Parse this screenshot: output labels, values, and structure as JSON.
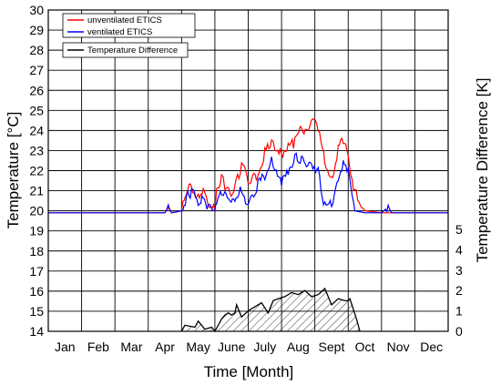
{
  "chart_data": {
    "type": "line",
    "xlabel": "Time [Month]",
    "ylabel": "Temperature [°C]",
    "y2label": "Temperature Difference [K]",
    "categories": [
      "Jan",
      "Feb",
      "Mar",
      "Apr",
      "May",
      "June",
      "July",
      "Aug",
      "Sept",
      "Oct",
      "Nov",
      "Dec"
    ],
    "xlim": [
      0,
      12
    ],
    "ylim": [
      14,
      30
    ],
    "yticks": [
      14,
      15,
      16,
      17,
      18,
      19,
      20,
      21,
      22,
      23,
      24,
      25,
      26,
      27,
      28,
      29,
      30
    ],
    "y2lim": [
      0,
      5
    ],
    "y2ticks": [
      0,
      1,
      2,
      3,
      4,
      5
    ],
    "grid": true,
    "legend": "top-left",
    "colors": {
      "unventilated": "#ff0000",
      "ventilated": "#0000ff",
      "difference": "#000000",
      "grid": "#000000"
    },
    "series": [
      {
        "name": "unventilated ETICS",
        "axis": "left",
        "x": [
          0,
          3.5,
          3.6,
          3.7,
          4.0,
          4.15,
          4.3,
          4.5,
          4.65,
          4.8,
          5.0,
          5.05,
          5.2,
          5.3,
          5.45,
          5.6,
          5.8,
          6.0,
          6.25,
          6.5,
          6.7,
          6.8,
          7.0,
          7.2,
          7.4,
          7.6,
          7.75,
          7.9,
          8.1,
          8.3,
          8.5,
          8.7,
          8.85,
          9.0,
          9.2,
          9.5,
          10.0,
          12.0
        ],
        "values": [
          19.9,
          19.9,
          20.2,
          19.9,
          20.0,
          20.9,
          21.2,
          20.6,
          21.1,
          20.3,
          20.0,
          21.0,
          21.6,
          21.3,
          20.9,
          21.2,
          22.3,
          21.5,
          21.7,
          22.9,
          23.5,
          23.2,
          22.9,
          23.2,
          23.4,
          24.2,
          24.0,
          24.4,
          24.1,
          22.5,
          21.5,
          23.0,
          23.6,
          22.8,
          20.9,
          20.0,
          19.9,
          19.9
        ]
      },
      {
        "name": "ventilated ETICS",
        "axis": "left",
        "x": [
          0,
          3.5,
          3.6,
          3.7,
          4.0,
          4.15,
          4.3,
          4.5,
          4.65,
          4.8,
          5.0,
          5.05,
          5.2,
          5.3,
          5.45,
          5.6,
          5.8,
          6.0,
          6.25,
          6.5,
          6.7,
          6.8,
          7.0,
          7.2,
          7.4,
          7.6,
          7.75,
          7.9,
          8.1,
          8.3,
          8.5,
          8.7,
          8.85,
          9.0,
          9.2,
          9.5,
          10.0,
          10.2,
          10.3,
          12.0
        ],
        "values": [
          19.9,
          19.9,
          20.2,
          19.9,
          20.0,
          20.6,
          21.0,
          20.4,
          20.8,
          20.1,
          20.0,
          20.6,
          21.0,
          20.7,
          20.3,
          20.6,
          21.1,
          20.2,
          21.2,
          21.8,
          22.6,
          21.9,
          21.3,
          22.0,
          22.7,
          22.6,
          22.2,
          22.4,
          22.0,
          20.2,
          20.3,
          21.5,
          22.4,
          21.9,
          20.0,
          19.9,
          19.9,
          20.2,
          19.9,
          19.9
        ]
      },
      {
        "name": "Temperature Difference",
        "axis": "right",
        "x": [
          4.0,
          4.1,
          4.4,
          4.5,
          4.7,
          4.9,
          5.0,
          5.2,
          5.3,
          5.4,
          5.5,
          5.6,
          5.65,
          5.8,
          6.0,
          6.2,
          6.4,
          6.6,
          6.75,
          6.9,
          7.1,
          7.3,
          7.5,
          7.7,
          7.9,
          8.1,
          8.3,
          8.5,
          8.7,
          8.9,
          9.0,
          9.05,
          9.25,
          9.35
        ],
        "values": [
          0,
          0.3,
          0.2,
          0.5,
          0.1,
          0.2,
          0,
          0.6,
          0.8,
          0.9,
          0.8,
          0.9,
          1.3,
          0.7,
          1.0,
          1.2,
          1.4,
          0.9,
          1.5,
          1.6,
          1.7,
          1.9,
          1.8,
          2.0,
          1.7,
          1.8,
          2.1,
          1.3,
          1.6,
          1.5,
          1.5,
          1.6,
          0.6,
          0
        ]
      }
    ]
  }
}
